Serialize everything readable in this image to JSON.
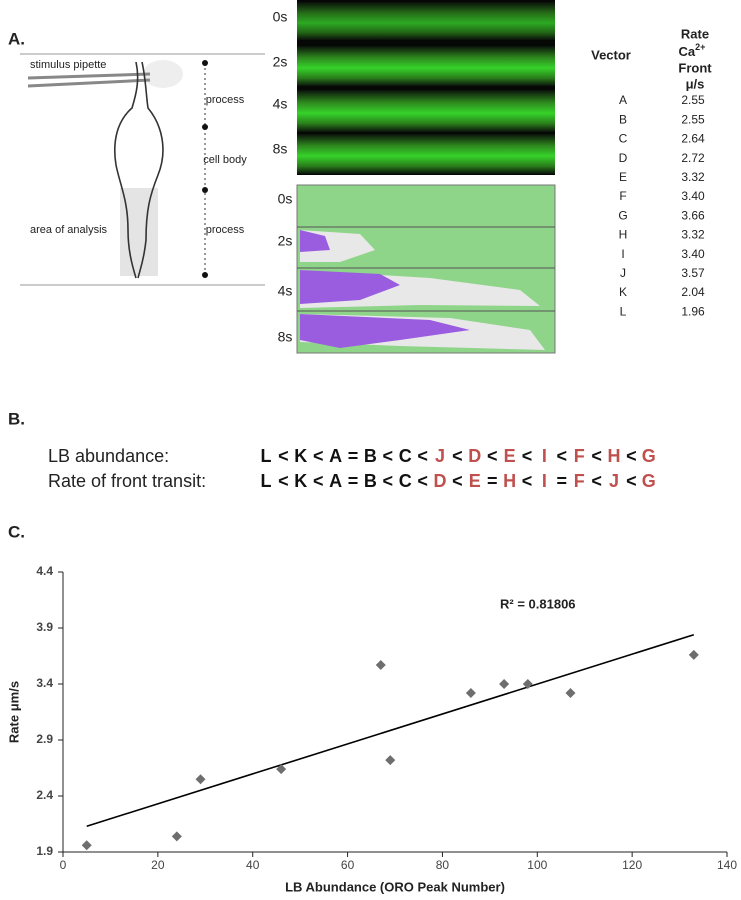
{
  "panel_a": {
    "label": "A.",
    "diagram": {
      "pipette": "stimulus pipette",
      "segments": [
        "process",
        "cell body",
        "process"
      ],
      "analysis": "area of analysis"
    },
    "image_times": [
      "0s",
      "2s",
      "4s",
      "8s"
    ],
    "map_times": [
      "0s",
      "2s",
      "4s",
      "8s"
    ],
    "table": {
      "header": {
        "vector": "Vector",
        "rate": "Rate",
        "ca": "Ca",
        "ca_sup": "2+",
        "front": "Front",
        "unit": "μ/s"
      },
      "rows": [
        [
          "A",
          "2.55"
        ],
        [
          "B",
          "2.55"
        ],
        [
          "C",
          "2.64"
        ],
        [
          "D",
          "2.72"
        ],
        [
          "E",
          "3.32"
        ],
        [
          "F",
          "3.40"
        ],
        [
          "G",
          "3.66"
        ],
        [
          "H",
          "3.32"
        ],
        [
          "I",
          "3.40"
        ],
        [
          "J",
          "3.57"
        ],
        [
          "K",
          "2.04"
        ],
        [
          "L",
          "1.96"
        ]
      ]
    }
  },
  "panel_b": {
    "label": "B.",
    "rows": [
      {
        "label": "LB abundance:",
        "tokens": [
          {
            "text": "L",
            "color": "#111111"
          },
          {
            "text": "<",
            "color": "#111111"
          },
          {
            "text": "K",
            "color": "#111111"
          },
          {
            "text": "<",
            "color": "#111111"
          },
          {
            "text": "A",
            "color": "#111111"
          },
          {
            "text": "=",
            "color": "#111111"
          },
          {
            "text": "B",
            "color": "#111111"
          },
          {
            "text": "<",
            "color": "#111111"
          },
          {
            "text": "C",
            "color": "#111111"
          },
          {
            "text": "<",
            "color": "#111111"
          },
          {
            "text": "J",
            "color": "#c0504d"
          },
          {
            "text": "<",
            "color": "#111111"
          },
          {
            "text": "D",
            "color": "#c0504d"
          },
          {
            "text": "<",
            "color": "#111111"
          },
          {
            "text": "E",
            "color": "#c0504d"
          },
          {
            "text": "<",
            "color": "#111111"
          },
          {
            "text": "I",
            "color": "#c0504d"
          },
          {
            "text": "<",
            "color": "#111111"
          },
          {
            "text": "F",
            "color": "#c0504d"
          },
          {
            "text": "<",
            "color": "#111111"
          },
          {
            "text": "H",
            "color": "#c0504d"
          },
          {
            "text": "<",
            "color": "#111111"
          },
          {
            "text": "G",
            "color": "#c0504d"
          }
        ]
      },
      {
        "label": "Rate of front transit:",
        "tokens": [
          {
            "text": "L",
            "color": "#111111"
          },
          {
            "text": "<",
            "color": "#111111"
          },
          {
            "text": "K",
            "color": "#111111"
          },
          {
            "text": "<",
            "color": "#111111"
          },
          {
            "text": "A",
            "color": "#111111"
          },
          {
            "text": "=",
            "color": "#111111"
          },
          {
            "text": "B",
            "color": "#111111"
          },
          {
            "text": "<",
            "color": "#111111"
          },
          {
            "text": "C",
            "color": "#111111"
          },
          {
            "text": "<",
            "color": "#111111"
          },
          {
            "text": "D",
            "color": "#c0504d"
          },
          {
            "text": "<",
            "color": "#111111"
          },
          {
            "text": "E",
            "color": "#c0504d"
          },
          {
            "text": "=",
            "color": "#111111"
          },
          {
            "text": "H",
            "color": "#c0504d"
          },
          {
            "text": "<",
            "color": "#111111"
          },
          {
            "text": "I",
            "color": "#c0504d"
          },
          {
            "text": "=",
            "color": "#111111"
          },
          {
            "text": "F",
            "color": "#c0504d"
          },
          {
            "text": "<",
            "color": "#111111"
          },
          {
            "text": "J",
            "color": "#c0504d"
          },
          {
            "text": "<",
            "color": "#111111"
          },
          {
            "text": "G",
            "color": "#c0504d"
          }
        ]
      }
    ]
  },
  "chart_data": {
    "type": "scatter",
    "label": "C.",
    "x": [
      5,
      24,
      29,
      46,
      67,
      69,
      86,
      93,
      98,
      107,
      133
    ],
    "values": [
      1.96,
      2.04,
      2.55,
      2.64,
      3.57,
      2.72,
      3.32,
      3.4,
      3.4,
      3.32,
      3.66
    ],
    "color": "#6e6e6e",
    "xlim": [
      0,
      140
    ],
    "xticks": [
      0,
      20,
      40,
      60,
      80,
      100,
      120,
      140
    ],
    "ylim": [
      1.9,
      4.4
    ],
    "yticks": [
      1.9,
      2.4,
      2.9,
      3.4,
      3.9,
      4.4
    ],
    "x_label": "LB Abundance (ORO Peak Number)",
    "y_label": "Rate μm/s",
    "annotation": "R² = 0.81806",
    "trendline": {
      "x": [
        5,
        133
      ],
      "values": [
        2.13,
        3.84
      ],
      "color": "#000000"
    }
  }
}
